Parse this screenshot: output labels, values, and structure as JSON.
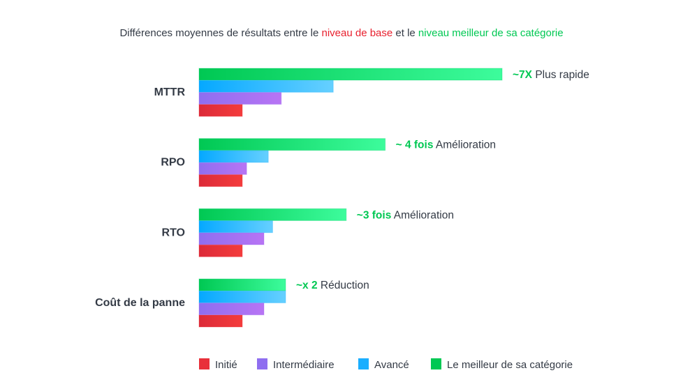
{
  "chart_data": {
    "type": "bar",
    "orientation": "horizontal",
    "title": {
      "prefix": "Différences moyennes de résultats entre le ",
      "highlight1": "niveau de base",
      "middle": " et le ",
      "highlight2": "niveau meilleur de sa catégorie",
      "highlight1_color": "#e8202e",
      "highlight2_color": "#00c853"
    },
    "categories": [
      "MTTR",
      "RPO",
      "RTO",
      "Coût de la panne"
    ],
    "series": [
      {
        "name": "Le meilleur de sa catégorie",
        "color": "#00d26a",
        "values": [
          7.0,
          4.3,
          3.4,
          2.0
        ]
      },
      {
        "name": "Avancé",
        "color": "#1aaeff",
        "values": [
          3.1,
          1.6,
          1.7,
          2.0
        ]
      },
      {
        "name": "Intermédiaire",
        "color": "#9a6cf0",
        "values": [
          1.9,
          1.1,
          1.5,
          1.5
        ]
      },
      {
        "name": "Initié",
        "color": "#e8303a",
        "values": [
          1.0,
          1.0,
          1.0,
          1.0
        ]
      }
    ],
    "annotations": [
      {
        "bold": "~7X",
        "text": " Plus rapide"
      },
      {
        "bold": "~ 4 fois",
        "text": " Amélioration"
      },
      {
        "bold": "~3 fois",
        "text": " Amélioration"
      },
      {
        "bold": "~x 2",
        "text": " Réduction"
      }
    ],
    "legend": {
      "position": "bottom",
      "items": [
        {
          "label": "Initié",
          "color": "#e8303a"
        },
        {
          "label": "Intermédiaire",
          "color": "#8f6ef0"
        },
        {
          "label": "Avancé",
          "color": "#1aaeff"
        },
        {
          "label": "Le meilleur de sa catégorie",
          "color": "#00c853"
        }
      ]
    },
    "xaxis_visible": false,
    "grid": false
  }
}
